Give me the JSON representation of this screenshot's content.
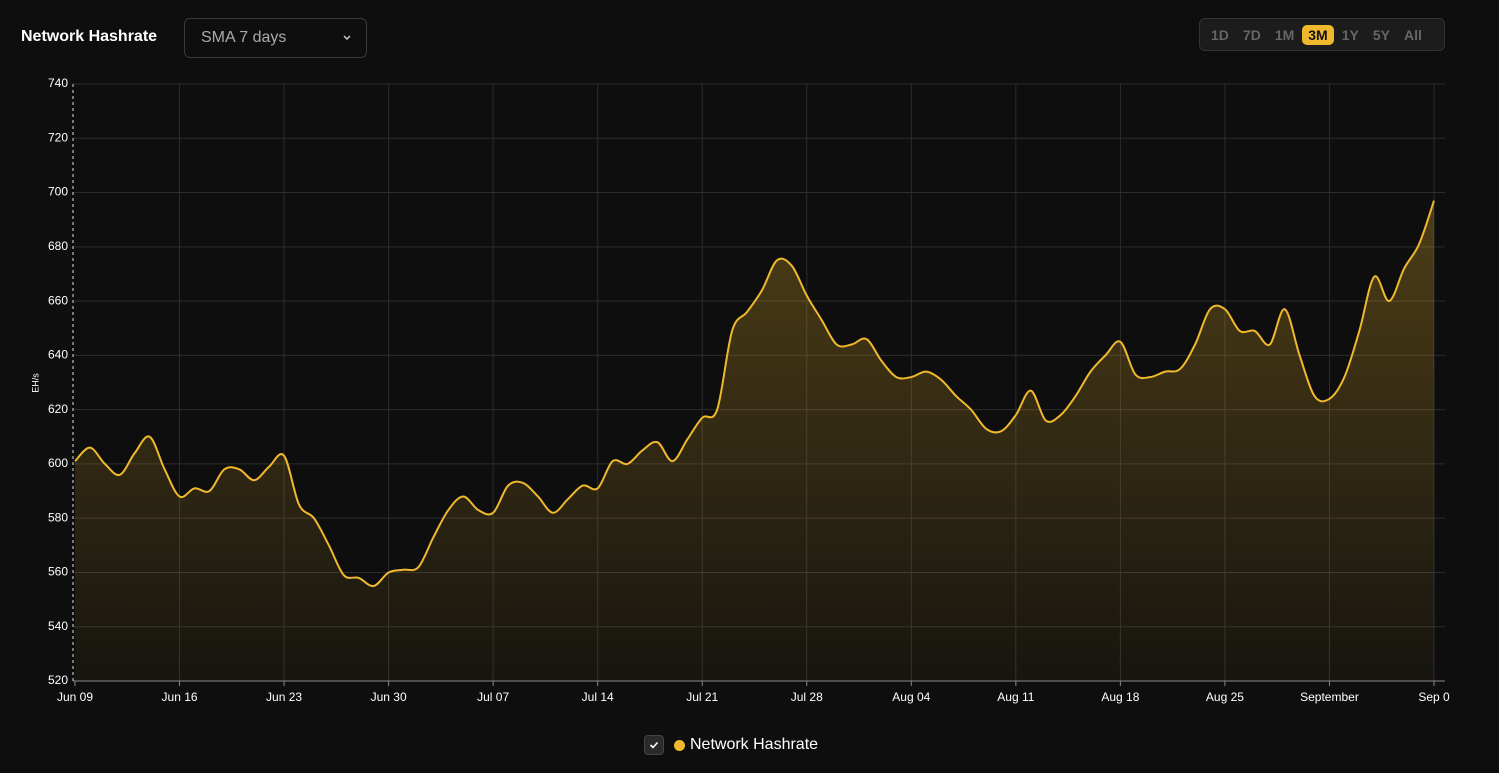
{
  "header": {
    "title": "Network Hashrate",
    "dropdown": "SMA 7 days",
    "ranges": [
      "1D",
      "7D",
      "1M",
      "3M",
      "1Y",
      "5Y",
      "All"
    ]
  },
  "chart_data": {
    "type": "area",
    "y_label": "EH/s",
    "categories": [
      "Jun 09",
      null,
      null,
      null,
      null,
      null,
      null,
      "Jun 16",
      null,
      null,
      null,
      null,
      null,
      null,
      "Jun 23",
      null,
      null,
      null,
      null,
      null,
      null,
      "Jun 30",
      null,
      null,
      null,
      null,
      null,
      null,
      "Jul 07",
      null,
      null,
      null,
      null,
      null,
      null,
      "Jul 14",
      null,
      null,
      null,
      null,
      null,
      null,
      "Jul 21",
      null,
      null,
      null,
      null,
      null,
      null,
      "Jul 28",
      null,
      null,
      null,
      null,
      null,
      null,
      "Aug 04",
      null,
      null,
      null,
      null,
      null,
      null,
      "Aug 11",
      null,
      null,
      null,
      null,
      null,
      null,
      "Aug 18",
      null,
      null,
      null,
      null,
      null,
      null,
      "Aug 25",
      null,
      null,
      null,
      null,
      null,
      null,
      "September",
      null,
      null,
      null,
      null,
      null,
      null,
      "Sep 0"
    ],
    "series": [
      {
        "name": "Network Hashrate",
        "color": "#f0b92d",
        "values": [
          601,
          606,
          600,
          596,
          604,
          610,
          598,
          588,
          591,
          590,
          598,
          598,
          594,
          599,
          603,
          585,
          580,
          570,
          559,
          558,
          555,
          560,
          561,
          562,
          573,
          583,
          588,
          583,
          582,
          592,
          593,
          588,
          582,
          587,
          592,
          591,
          601,
          600,
          605,
          608,
          601,
          609,
          617,
          620,
          649,
          656,
          664,
          675,
          673,
          662,
          653,
          644,
          644,
          646,
          638,
          632,
          632,
          634,
          631,
          625,
          620,
          613,
          612,
          618,
          627,
          616,
          618,
          625,
          634,
          640,
          645,
          633,
          632,
          634,
          635,
          644,
          657,
          657,
          649,
          649,
          644,
          657,
          640,
          625,
          624,
          632,
          649,
          669,
          660,
          672,
          681,
          697
        ]
      }
    ],
    "ylim": [
      520,
      740
    ],
    "yticks": [
      520,
      540,
      560,
      580,
      600,
      620,
      640,
      660,
      680,
      700,
      720,
      740
    ],
    "grid": true
  }
}
